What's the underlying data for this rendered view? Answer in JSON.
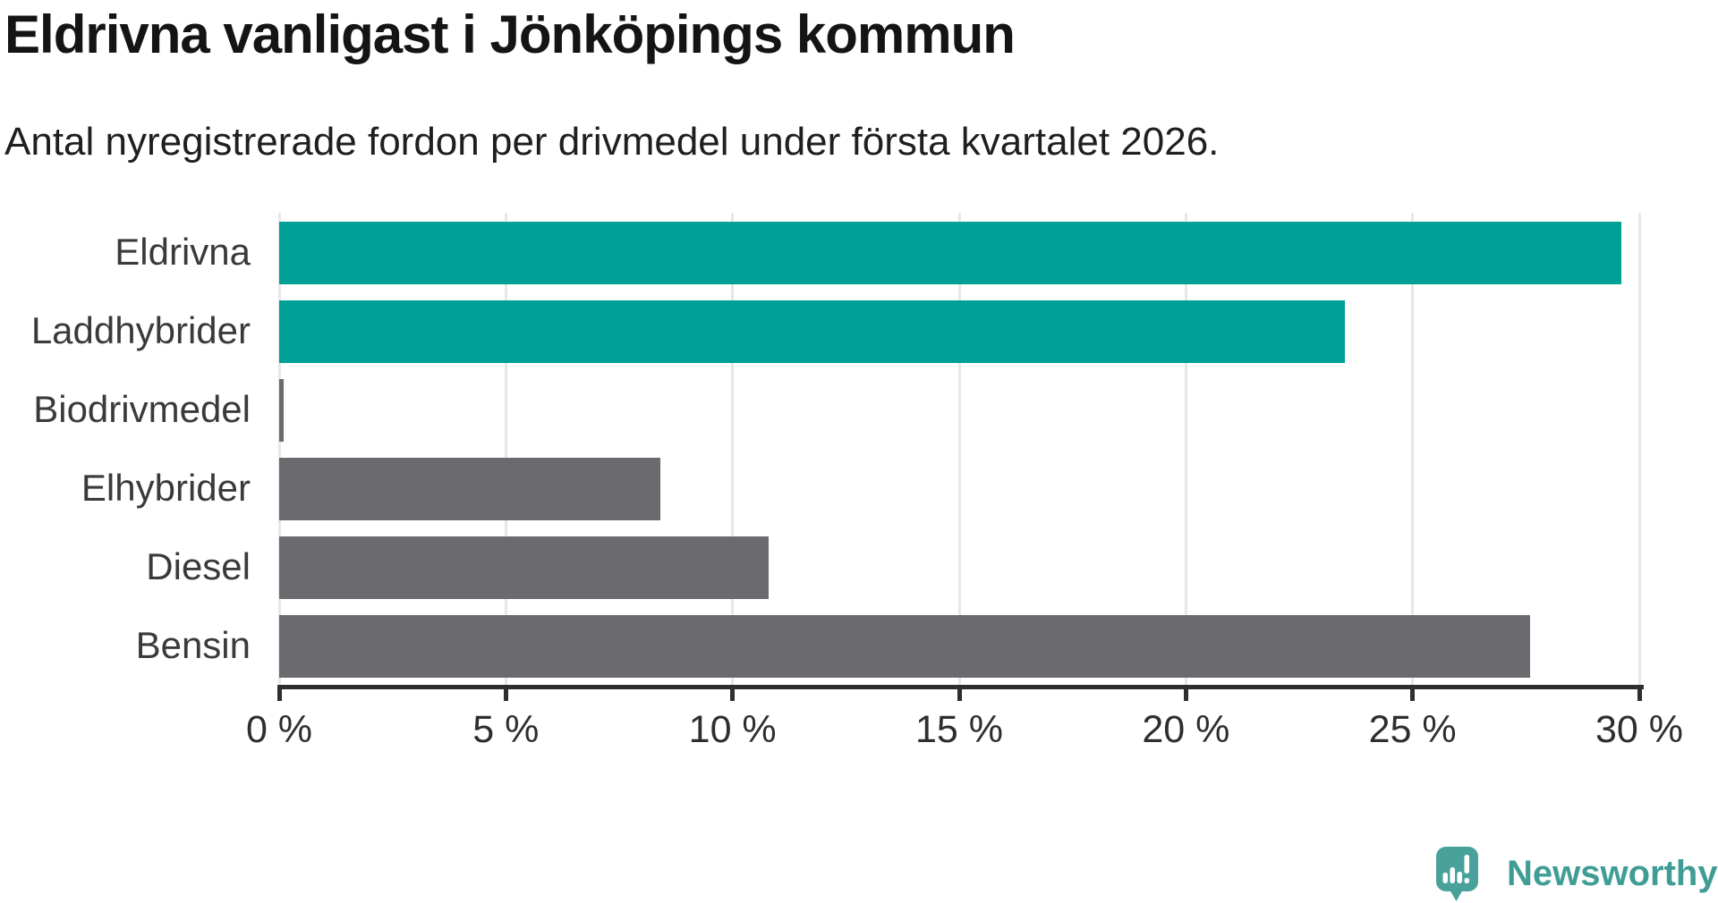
{
  "header": {
    "title": "Eldrivna vanligast i Jönköpings kommun",
    "subtitle": "Antal nyregistrerade fordon per drivmedel under första kvartalet 2026."
  },
  "chart_data": {
    "type": "bar",
    "orientation": "horizontal",
    "title": "Eldrivna vanligast i Jönköpings kommun",
    "subtitle": "Antal nyregistrerade fordon per drivmedel under första kvartalet 2026.",
    "categories": [
      "Eldrivna",
      "Laddhybrider",
      "Biodrivmedel",
      "Elhybrider",
      "Diesel",
      "Bensin"
    ],
    "values": [
      29.6,
      23.5,
      0.1,
      8.4,
      10.8,
      27.6
    ],
    "unit": "%",
    "bar_colors": [
      "#00a096",
      "#00a096",
      "#6a6a6f",
      "#6a6a6f",
      "#6a6a6f",
      "#6a6a6f"
    ],
    "xlabel": "",
    "ylabel": "",
    "xlim": [
      0,
      30
    ],
    "x_ticks": [
      0,
      5,
      10,
      15,
      20,
      25,
      30
    ],
    "x_tick_labels": [
      "0 %",
      "5 %",
      "10 %",
      "15 %",
      "20 %",
      "25 %",
      "30 %"
    ],
    "grid": "vertical-only",
    "legend": "none"
  },
  "branding": {
    "logo_text": "Newsworthy",
    "logo_icon": "newsworthy-speech-bubble-barchart-icon",
    "logo_color": "#3f9d95",
    "logo_icon_color": "#48a19a"
  },
  "colors": {
    "accent_teal": "#00a096",
    "neutral_gray": "#6a6a6f",
    "gridline": "#e7e7e7",
    "axis": "#2e2e2e",
    "title_text": "#141414",
    "label_text": "#3a3a3a",
    "background": "#ffffff"
  }
}
